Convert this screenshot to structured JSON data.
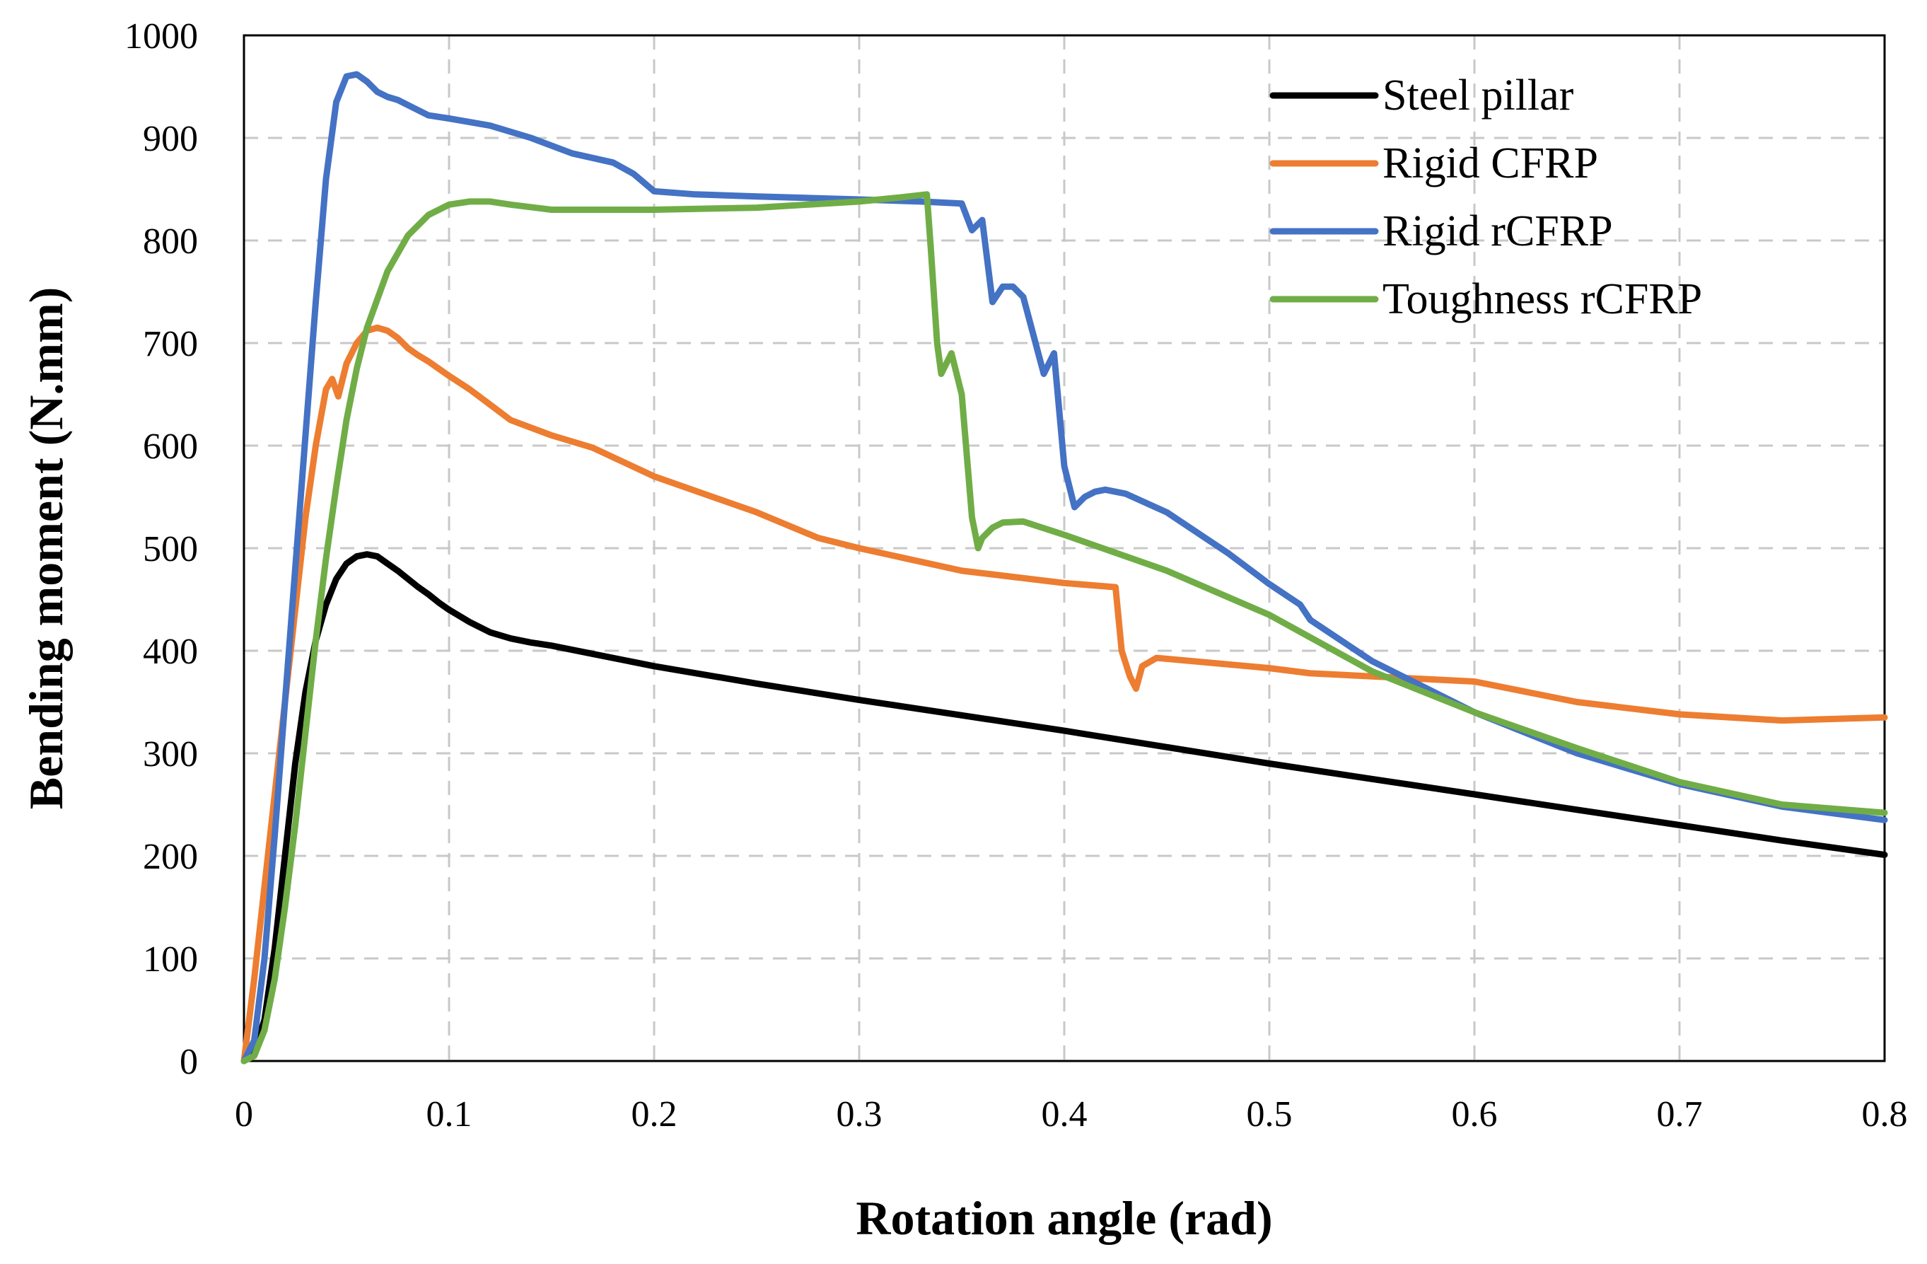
{
  "chart_data": {
    "type": "line",
    "title": "",
    "xlabel": "Rotation angle (rad)",
    "ylabel": "Bending moment (N.mm)",
    "xlim": [
      0,
      0.8
    ],
    "ylim": [
      0,
      1000
    ],
    "grid": true,
    "legend_position": "top-right",
    "x_ticks": [
      "0",
      "0.1",
      "0.2",
      "0.3",
      "0.4",
      "0.5",
      "0.6",
      "0.7",
      "0.8"
    ],
    "y_ticks": [
      "0",
      "100",
      "200",
      "300",
      "400",
      "500",
      "600",
      "700",
      "800",
      "900",
      "1000"
    ],
    "series": [
      {
        "name": "Steel pillar",
        "color": "#000000",
        "x": [
          0,
          0.005,
          0.01,
          0.015,
          0.02,
          0.025,
          0.03,
          0.035,
          0.04,
          0.045,
          0.05,
          0.055,
          0.06,
          0.065,
          0.07,
          0.075,
          0.08,
          0.085,
          0.09,
          0.095,
          0.1,
          0.11,
          0.12,
          0.13,
          0.14,
          0.15,
          0.17,
          0.2,
          0.25,
          0.3,
          0.35,
          0.4,
          0.45,
          0.5,
          0.55,
          0.6,
          0.65,
          0.7,
          0.75,
          0.8
        ],
        "y": [
          0,
          10,
          40,
          110,
          200,
          290,
          360,
          410,
          445,
          470,
          485,
          492,
          494,
          492,
          485,
          478,
          470,
          462,
          455,
          447,
          440,
          428,
          418,
          412,
          408,
          405,
          397,
          385,
          368,
          352,
          337,
          322,
          306,
          290,
          275,
          260,
          245,
          230,
          215,
          201
        ]
      },
      {
        "name": "Rigid CFRP",
        "color": "#ED7D31",
        "x": [
          0,
          0.005,
          0.01,
          0.015,
          0.02,
          0.025,
          0.03,
          0.035,
          0.04,
          0.043,
          0.046,
          0.05,
          0.055,
          0.06,
          0.065,
          0.07,
          0.075,
          0.08,
          0.085,
          0.09,
          0.1,
          0.11,
          0.12,
          0.13,
          0.15,
          0.17,
          0.2,
          0.25,
          0.28,
          0.3,
          0.35,
          0.4,
          0.425,
          0.428,
          0.432,
          0.435,
          0.438,
          0.445,
          0.5,
          0.52,
          0.6,
          0.65,
          0.7,
          0.75,
          0.8
        ],
        "y": [
          0,
          80,
          170,
          260,
          350,
          440,
          530,
          600,
          655,
          665,
          648,
          680,
          700,
          712,
          715,
          712,
          705,
          695,
          688,
          682,
          668,
          655,
          640,
          625,
          610,
          598,
          570,
          535,
          510,
          500,
          478,
          466,
          462,
          400,
          375,
          363,
          385,
          393,
          383,
          378,
          370,
          350,
          338,
          332,
          335
        ]
      },
      {
        "name": "Rigid rCFRP",
        "color": "#4472C4",
        "x": [
          0,
          0.005,
          0.01,
          0.015,
          0.02,
          0.025,
          0.03,
          0.035,
          0.04,
          0.045,
          0.05,
          0.055,
          0.06,
          0.065,
          0.07,
          0.075,
          0.08,
          0.09,
          0.1,
          0.12,
          0.14,
          0.16,
          0.18,
          0.19,
          0.2,
          0.22,
          0.25,
          0.3,
          0.33,
          0.35,
          0.355,
          0.36,
          0.365,
          0.37,
          0.375,
          0.38,
          0.39,
          0.395,
          0.4,
          0.405,
          0.41,
          0.415,
          0.42,
          0.43,
          0.45,
          0.48,
          0.5,
          0.515,
          0.52,
          0.55,
          0.6,
          0.65,
          0.7,
          0.75,
          0.8
        ],
        "y": [
          0,
          20,
          100,
          220,
          350,
          480,
          610,
          740,
          860,
          935,
          960,
          962,
          955,
          945,
          940,
          937,
          932,
          922,
          919,
          912,
          900,
          885,
          876,
          865,
          848,
          845,
          843,
          840,
          838,
          836,
          810,
          820,
          740,
          755,
          755,
          745,
          670,
          690,
          580,
          540,
          550,
          555,
          557,
          553,
          535,
          495,
          465,
          445,
          430,
          390,
          340,
          300,
          270,
          248,
          235
        ]
      },
      {
        "name": "Toughness rCFRP",
        "color": "#70AD47",
        "x": [
          0,
          0.005,
          0.01,
          0.015,
          0.02,
          0.025,
          0.03,
          0.035,
          0.04,
          0.045,
          0.05,
          0.055,
          0.06,
          0.07,
          0.08,
          0.09,
          0.1,
          0.11,
          0.12,
          0.13,
          0.15,
          0.17,
          0.2,
          0.25,
          0.3,
          0.32,
          0.333,
          0.335,
          0.338,
          0.34,
          0.345,
          0.35,
          0.355,
          0.358,
          0.36,
          0.365,
          0.37,
          0.38,
          0.4,
          0.45,
          0.5,
          0.55,
          0.6,
          0.65,
          0.7,
          0.75,
          0.8
        ],
        "y": [
          0,
          5,
          30,
          80,
          150,
          230,
          320,
          410,
          490,
          560,
          625,
          675,
          715,
          770,
          805,
          825,
          835,
          838,
          838,
          835,
          830,
          830,
          830,
          832,
          838,
          842,
          845,
          790,
          700,
          670,
          690,
          650,
          530,
          500,
          510,
          520,
          525,
          526,
          513,
          478,
          435,
          380,
          340,
          305,
          272,
          250,
          242
        ]
      }
    ]
  }
}
